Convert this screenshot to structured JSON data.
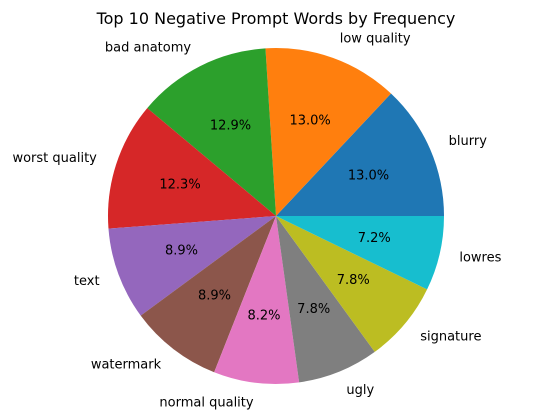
{
  "chart_data": {
    "type": "pie",
    "title": "Top 10 Negative Prompt Words by Frequency",
    "start_angle_deg": 0,
    "direction": "counterclockwise",
    "slices": [
      {
        "label": "blurry",
        "value": 13.0,
        "pct_text": "13.0%",
        "color": "#1f77b4"
      },
      {
        "label": "low quality",
        "value": 13.0,
        "pct_text": "13.0%",
        "color": "#ff7f0e"
      },
      {
        "label": "bad anatomy",
        "value": 12.9,
        "pct_text": "12.9%",
        "color": "#2ca02c"
      },
      {
        "label": "worst quality",
        "value": 12.3,
        "pct_text": "12.3%",
        "color": "#d62728"
      },
      {
        "label": "text",
        "value": 8.9,
        "pct_text": "8.9%",
        "color": "#9467bd"
      },
      {
        "label": "watermark",
        "value": 8.9,
        "pct_text": "8.9%",
        "color": "#8c564b"
      },
      {
        "label": "normal quality",
        "value": 8.2,
        "pct_text": "8.2%",
        "color": "#e377c2"
      },
      {
        "label": "ugly",
        "value": 7.8,
        "pct_text": "7.8%",
        "color": "#7f7f7f"
      },
      {
        "label": "signature",
        "value": 7.8,
        "pct_text": "7.8%",
        "color": "#bcbd22"
      },
      {
        "label": "lowres",
        "value": 7.2,
        "pct_text": "7.2%",
        "color": "#17becf"
      }
    ]
  }
}
